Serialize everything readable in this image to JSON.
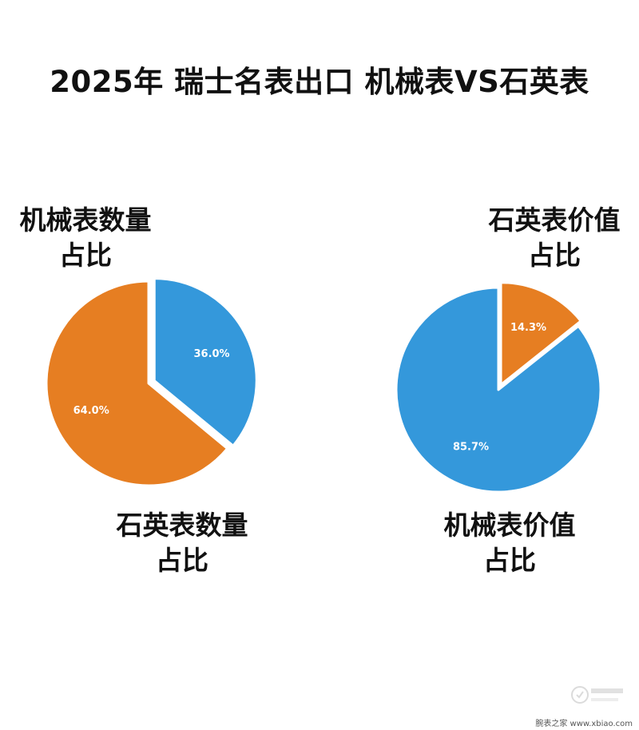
{
  "title": "2025年 瑞士名表出口 机械表VS石英表",
  "chart_data": [
    {
      "type": "pie",
      "slices": [
        {
          "label_lines": [
            "机械表数量",
            "占比"
          ],
          "value": 36.0,
          "value_label": "36.0%",
          "color": "#3498db"
        },
        {
          "label_lines": [
            "石英表数量",
            "占比"
          ],
          "value": 64.0,
          "value_label": "64.0%",
          "color": "#e67e22"
        }
      ]
    },
    {
      "type": "pie",
      "slices": [
        {
          "label_lines": [
            "石英表价值",
            "占比"
          ],
          "value": 14.3,
          "value_label": "14.3%",
          "color": "#e67e22"
        },
        {
          "label_lines": [
            "机械表价值",
            "占比"
          ],
          "value": 85.7,
          "value_label": "85.7%",
          "color": "#3498db"
        }
      ]
    }
  ],
  "watermark": {
    "text": "腕表之家 www.xbiao.com"
  }
}
